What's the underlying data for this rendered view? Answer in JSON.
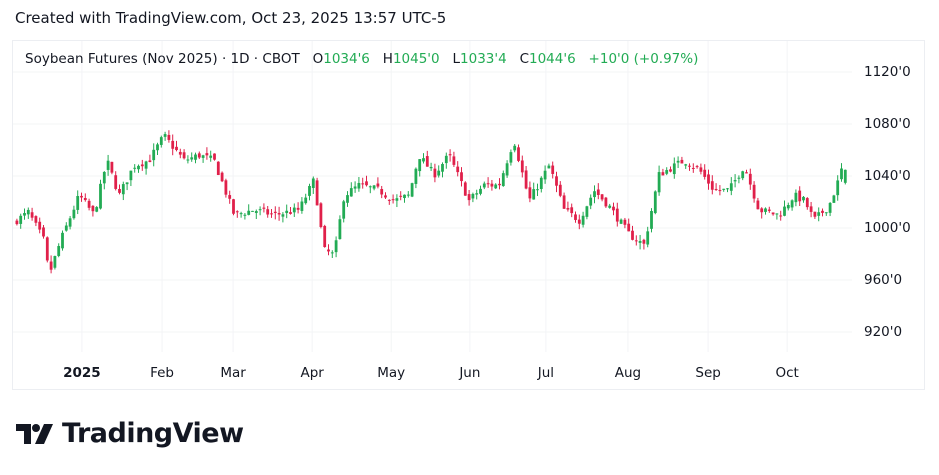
{
  "caption": "Created with TradingView.com, Oct 23, 2025 13:57 UTC-5",
  "legend": {
    "symbol": "Soybean Futures (Nov 2025) · 1D · CBOT",
    "o_label": "O",
    "o_value": "1034'6",
    "h_label": "H",
    "h_value": "1045'0",
    "l_label": "L",
    "l_value": "1033'4",
    "c_label": "C",
    "c_value": "1044'6",
    "change": "+10'0 (+0.97%)"
  },
  "logo_text": "TradingView",
  "colors": {
    "up": "#22ab54",
    "down": "#e0204a",
    "grid": "#f3f4f6",
    "text": "#131722"
  },
  "chart_data": {
    "type": "candlestick",
    "title": "Soybean Futures (Nov 2025) · 1D · CBOT",
    "ylim": [
      900,
      1140
    ],
    "y_ticks": [
      {
        "value": 1120,
        "label": "1120'0"
      },
      {
        "value": 1080,
        "label": "1080'0"
      },
      {
        "value": 1040,
        "label": "1040'0"
      },
      {
        "value": 1000,
        "label": "1000'0"
      },
      {
        "value": 960,
        "label": "960'0"
      },
      {
        "value": 920,
        "label": "920'0"
      }
    ],
    "x_ticks": [
      {
        "day": 17.6,
        "label": "2025",
        "bold": true
      },
      {
        "day": 38.7,
        "label": "Feb"
      },
      {
        "day": 57.4,
        "label": "Mar"
      },
      {
        "day": 78.2,
        "label": "Apr"
      },
      {
        "day": 99,
        "label": "May"
      },
      {
        "day": 119.7,
        "label": "Jun"
      },
      {
        "day": 139.7,
        "label": "Jul"
      },
      {
        "day": 161.3,
        "label": "Aug"
      },
      {
        "day": 182.4,
        "label": "Sep"
      },
      {
        "day": 203.2,
        "label": "Oct"
      }
    ],
    "total_days": 219,
    "close_anchors": [
      [
        0,
        1004
      ],
      [
        4,
        1012
      ],
      [
        8,
        991
      ],
      [
        9.5,
        964
      ],
      [
        12.6,
        991
      ],
      [
        17.4,
        1025
      ],
      [
        21.3,
        1010
      ],
      [
        24.7,
        1052
      ],
      [
        27.9,
        1025
      ],
      [
        31.8,
        1048
      ],
      [
        35.8,
        1052
      ],
      [
        39.7,
        1071
      ],
      [
        45,
        1052
      ],
      [
        49,
        1056
      ],
      [
        52.9,
        1052
      ],
      [
        58.2,
        1010
      ],
      [
        63.4,
        1014
      ],
      [
        68.7,
        1010
      ],
      [
        75.3,
        1014
      ],
      [
        79.2,
        1037
      ],
      [
        81.8,
        983
      ],
      [
        84.5,
        979
      ],
      [
        87.1,
        1025
      ],
      [
        91.1,
        1033
      ],
      [
        96.3,
        1029
      ],
      [
        100.3,
        1021
      ],
      [
        104.2,
        1025
      ],
      [
        106.8,
        1056
      ],
      [
        110.8,
        1041
      ],
      [
        114.7,
        1056
      ],
      [
        120,
        1021
      ],
      [
        124,
        1033
      ],
      [
        127.9,
        1033
      ],
      [
        131.8,
        1068
      ],
      [
        135.8,
        1021
      ],
      [
        141.1,
        1048
      ],
      [
        145,
        1014
      ],
      [
        149,
        1006
      ],
      [
        152.9,
        1029
      ],
      [
        156.8,
        1017
      ],
      [
        162.1,
        995
      ],
      [
        166.1,
        987
      ],
      [
        170,
        1041
      ],
      [
        176.6,
        1052
      ],
      [
        180.5,
        1045
      ],
      [
        184.5,
        1029
      ],
      [
        188.4,
        1029
      ],
      [
        192.4,
        1048
      ],
      [
        196.3,
        1014
      ],
      [
        201.6,
        1010
      ],
      [
        205.5,
        1025
      ],
      [
        208.2,
        1021
      ],
      [
        210.8,
        1006
      ],
      [
        214.7,
        1017
      ],
      [
        216.8,
        1033
      ],
      [
        218,
        1044.75
      ]
    ],
    "last": {
      "open": 1034.75,
      "high": 1045.0,
      "low": 1033.5,
      "close": 1044.75
    }
  }
}
